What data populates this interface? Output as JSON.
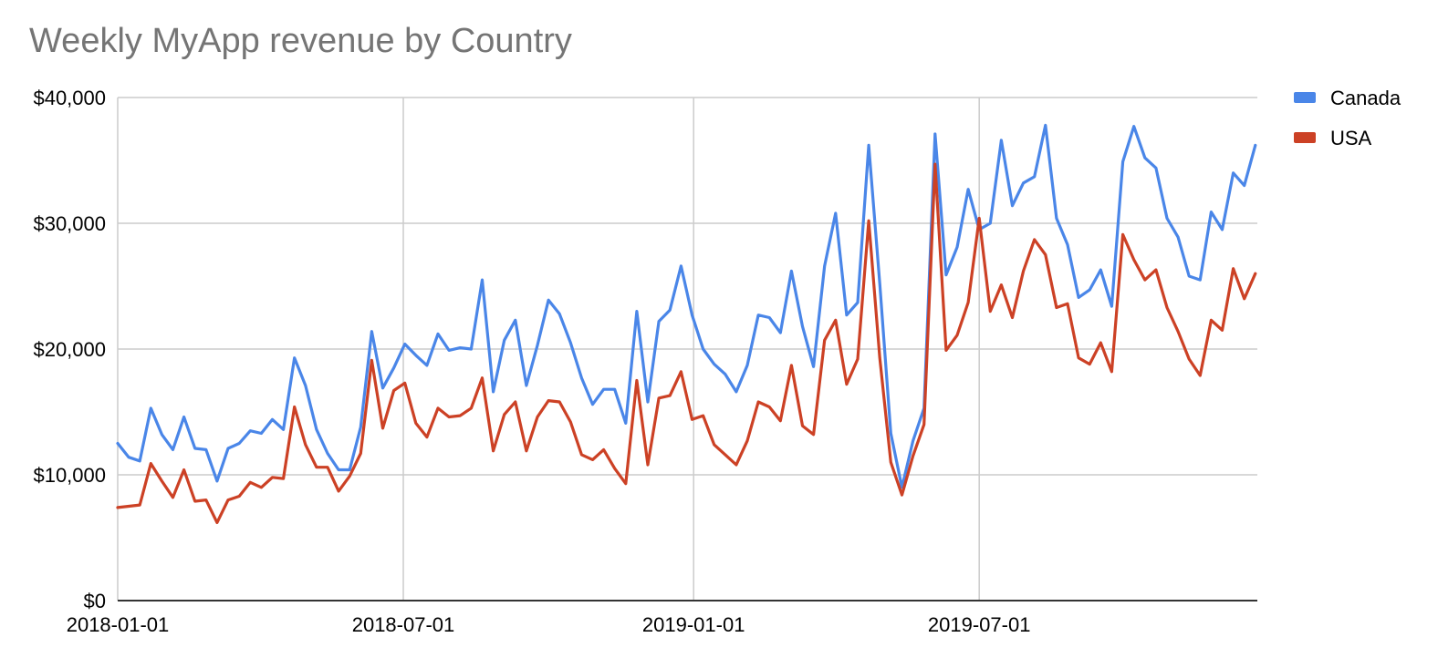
{
  "chart_data": {
    "type": "line",
    "title": "Weekly MyApp revenue by Country",
    "xlabel": "",
    "ylabel": "",
    "x_ticks": [
      "2018-01-01",
      "2018-07-01",
      "2019-01-01",
      "2019-07-01"
    ],
    "y_ticks": [
      "$0",
      "$10,000",
      "$20,000",
      "$30,000",
      "$40,000"
    ],
    "ylim": [
      0,
      40000
    ],
    "xlim": [
      "2018-01-01",
      "2019-12-30"
    ],
    "grid": true,
    "legend_position": "right",
    "series": [
      {
        "name": "Canada",
        "color": "#4a86e8",
        "points": [
          [
            "2018-01-01",
            12500
          ],
          [
            "2018-01-08",
            11400
          ],
          [
            "2018-01-15",
            11100
          ],
          [
            "2018-01-22",
            15300
          ],
          [
            "2018-01-29",
            13200
          ],
          [
            "2018-02-05",
            12000
          ],
          [
            "2018-02-12",
            14600
          ],
          [
            "2018-02-19",
            12100
          ],
          [
            "2018-02-26",
            12000
          ],
          [
            "2018-03-05",
            9500
          ],
          [
            "2018-03-12",
            12100
          ],
          [
            "2018-03-19",
            12500
          ],
          [
            "2018-03-26",
            13500
          ],
          [
            "2018-04-02",
            13300
          ],
          [
            "2018-04-09",
            14400
          ],
          [
            "2018-04-16",
            13600
          ],
          [
            "2018-04-23",
            19300
          ],
          [
            "2018-04-30",
            17100
          ],
          [
            "2018-05-07",
            13600
          ],
          [
            "2018-05-14",
            11700
          ],
          [
            "2018-05-21",
            10400
          ],
          [
            "2018-05-28",
            10400
          ],
          [
            "2018-06-04",
            13800
          ],
          [
            "2018-06-11",
            21400
          ],
          [
            "2018-06-18",
            16900
          ],
          [
            "2018-06-25",
            18500
          ],
          [
            "2018-07-02",
            20400
          ],
          [
            "2018-07-09",
            19500
          ],
          [
            "2018-07-16",
            18700
          ],
          [
            "2018-07-23",
            21200
          ],
          [
            "2018-07-30",
            19900
          ],
          [
            "2018-08-06",
            20100
          ],
          [
            "2018-08-13",
            20000
          ],
          [
            "2018-08-20",
            25500
          ],
          [
            "2018-08-27",
            16600
          ],
          [
            "2018-09-03",
            20700
          ],
          [
            "2018-09-10",
            22300
          ],
          [
            "2018-09-17",
            17100
          ],
          [
            "2018-09-24",
            20300
          ],
          [
            "2018-10-01",
            23900
          ],
          [
            "2018-10-08",
            22800
          ],
          [
            "2018-10-15",
            20500
          ],
          [
            "2018-10-22",
            17700
          ],
          [
            "2018-10-29",
            15600
          ],
          [
            "2018-11-05",
            16800
          ],
          [
            "2018-11-12",
            16800
          ],
          [
            "2018-11-19",
            14100
          ],
          [
            "2018-11-26",
            23000
          ],
          [
            "2018-12-03",
            15800
          ],
          [
            "2018-12-10",
            22200
          ],
          [
            "2018-12-17",
            23100
          ],
          [
            "2018-12-24",
            26600
          ],
          [
            "2018-12-31",
            22700
          ],
          [
            "2019-01-07",
            20000
          ],
          [
            "2019-01-14",
            18800
          ],
          [
            "2019-01-21",
            18000
          ],
          [
            "2019-01-28",
            16600
          ],
          [
            "2019-02-04",
            18700
          ],
          [
            "2019-02-11",
            22700
          ],
          [
            "2019-02-18",
            22500
          ],
          [
            "2019-02-25",
            21300
          ],
          [
            "2019-03-04",
            26200
          ],
          [
            "2019-03-11",
            21800
          ],
          [
            "2019-03-18",
            18600
          ],
          [
            "2019-03-25",
            26600
          ],
          [
            "2019-04-01",
            30800
          ],
          [
            "2019-04-08",
            22700
          ],
          [
            "2019-04-15",
            23700
          ],
          [
            "2019-04-22",
            36200
          ],
          [
            "2019-04-29",
            25200
          ],
          [
            "2019-05-06",
            13300
          ],
          [
            "2019-05-13",
            9000
          ],
          [
            "2019-05-20",
            12700
          ],
          [
            "2019-05-27",
            15300
          ],
          [
            "2019-06-03",
            37100
          ],
          [
            "2019-06-10",
            25900
          ],
          [
            "2019-06-17",
            28100
          ],
          [
            "2019-06-24",
            32700
          ],
          [
            "2019-07-01",
            29500
          ],
          [
            "2019-07-08",
            30000
          ],
          [
            "2019-07-15",
            36600
          ],
          [
            "2019-07-22",
            31400
          ],
          [
            "2019-07-29",
            33200
          ],
          [
            "2019-08-05",
            33700
          ],
          [
            "2019-08-12",
            37800
          ],
          [
            "2019-08-19",
            30400
          ],
          [
            "2019-08-26",
            28300
          ],
          [
            "2019-09-02",
            24100
          ],
          [
            "2019-09-09",
            24700
          ],
          [
            "2019-09-16",
            26300
          ],
          [
            "2019-09-23",
            23400
          ],
          [
            "2019-09-30",
            34900
          ],
          [
            "2019-10-07",
            37700
          ],
          [
            "2019-10-14",
            35200
          ],
          [
            "2019-10-21",
            34400
          ],
          [
            "2019-10-28",
            30400
          ],
          [
            "2019-11-04",
            28900
          ],
          [
            "2019-11-11",
            25800
          ],
          [
            "2019-11-18",
            25500
          ],
          [
            "2019-11-25",
            30900
          ],
          [
            "2019-12-02",
            29500
          ],
          [
            "2019-12-09",
            34000
          ],
          [
            "2019-12-16",
            33000
          ],
          [
            "2019-12-23",
            36200
          ]
        ]
      },
      {
        "name": "USA",
        "color": "#cc4125",
        "points": [
          [
            "2018-01-01",
            7400
          ],
          [
            "2018-01-08",
            7500
          ],
          [
            "2018-01-15",
            7600
          ],
          [
            "2018-01-22",
            10900
          ],
          [
            "2018-01-29",
            9500
          ],
          [
            "2018-02-05",
            8200
          ],
          [
            "2018-02-12",
            10400
          ],
          [
            "2018-02-19",
            7900
          ],
          [
            "2018-02-26",
            8000
          ],
          [
            "2018-03-05",
            6200
          ],
          [
            "2018-03-12",
            8000
          ],
          [
            "2018-03-19",
            8300
          ],
          [
            "2018-03-26",
            9400
          ],
          [
            "2018-04-02",
            9000
          ],
          [
            "2018-04-09",
            9800
          ],
          [
            "2018-04-16",
            9700
          ],
          [
            "2018-04-23",
            15400
          ],
          [
            "2018-04-30",
            12400
          ],
          [
            "2018-05-07",
            10600
          ],
          [
            "2018-05-14",
            10600
          ],
          [
            "2018-05-21",
            8700
          ],
          [
            "2018-05-28",
            9900
          ],
          [
            "2018-06-04",
            11700
          ],
          [
            "2018-06-11",
            19100
          ],
          [
            "2018-06-18",
            13700
          ],
          [
            "2018-06-25",
            16700
          ],
          [
            "2018-07-02",
            17300
          ],
          [
            "2018-07-09",
            14100
          ],
          [
            "2018-07-16",
            13000
          ],
          [
            "2018-07-23",
            15300
          ],
          [
            "2018-07-30",
            14600
          ],
          [
            "2018-08-06",
            14700
          ],
          [
            "2018-08-13",
            15300
          ],
          [
            "2018-08-20",
            17700
          ],
          [
            "2018-08-27",
            11900
          ],
          [
            "2018-09-03",
            14800
          ],
          [
            "2018-09-10",
            15800
          ],
          [
            "2018-09-17",
            11900
          ],
          [
            "2018-09-24",
            14600
          ],
          [
            "2018-10-01",
            15900
          ],
          [
            "2018-10-08",
            15800
          ],
          [
            "2018-10-15",
            14200
          ],
          [
            "2018-10-22",
            11600
          ],
          [
            "2018-10-29",
            11200
          ],
          [
            "2018-11-05",
            12000
          ],
          [
            "2018-11-12",
            10500
          ],
          [
            "2018-11-19",
            9300
          ],
          [
            "2018-11-26",
            17500
          ],
          [
            "2018-12-03",
            10800
          ],
          [
            "2018-12-10",
            16100
          ],
          [
            "2018-12-17",
            16300
          ],
          [
            "2018-12-24",
            18200
          ],
          [
            "2018-12-31",
            14400
          ],
          [
            "2019-01-07",
            14700
          ],
          [
            "2019-01-14",
            12400
          ],
          [
            "2019-01-21",
            11600
          ],
          [
            "2019-01-28",
            10800
          ],
          [
            "2019-02-04",
            12700
          ],
          [
            "2019-02-11",
            15800
          ],
          [
            "2019-02-18",
            15400
          ],
          [
            "2019-02-25",
            14300
          ],
          [
            "2019-03-04",
            18700
          ],
          [
            "2019-03-11",
            13900
          ],
          [
            "2019-03-18",
            13200
          ],
          [
            "2019-03-25",
            20700
          ],
          [
            "2019-04-01",
            22300
          ],
          [
            "2019-04-08",
            17200
          ],
          [
            "2019-04-15",
            19200
          ],
          [
            "2019-04-22",
            30200
          ],
          [
            "2019-04-29",
            19300
          ],
          [
            "2019-05-06",
            11000
          ],
          [
            "2019-05-13",
            8400
          ],
          [
            "2019-05-20",
            11500
          ],
          [
            "2019-05-27",
            14000
          ],
          [
            "2019-06-03",
            34700
          ],
          [
            "2019-06-10",
            19900
          ],
          [
            "2019-06-17",
            21100
          ],
          [
            "2019-06-24",
            23700
          ],
          [
            "2019-07-01",
            30400
          ],
          [
            "2019-07-08",
            23000
          ],
          [
            "2019-07-15",
            25100
          ],
          [
            "2019-07-22",
            22500
          ],
          [
            "2019-07-29",
            26200
          ],
          [
            "2019-08-05",
            28700
          ],
          [
            "2019-08-12",
            27500
          ],
          [
            "2019-08-19",
            23300
          ],
          [
            "2019-08-26",
            23600
          ],
          [
            "2019-09-02",
            19300
          ],
          [
            "2019-09-09",
            18800
          ],
          [
            "2019-09-16",
            20500
          ],
          [
            "2019-09-23",
            18200
          ],
          [
            "2019-09-30",
            29100
          ],
          [
            "2019-10-07",
            27100
          ],
          [
            "2019-10-14",
            25500
          ],
          [
            "2019-10-21",
            26300
          ],
          [
            "2019-10-28",
            23300
          ],
          [
            "2019-11-04",
            21400
          ],
          [
            "2019-11-11",
            19200
          ],
          [
            "2019-11-18",
            17900
          ],
          [
            "2019-11-25",
            22300
          ],
          [
            "2019-12-02",
            21500
          ],
          [
            "2019-12-09",
            26400
          ],
          [
            "2019-12-16",
            24000
          ],
          [
            "2019-12-23",
            26000
          ]
        ]
      }
    ]
  }
}
